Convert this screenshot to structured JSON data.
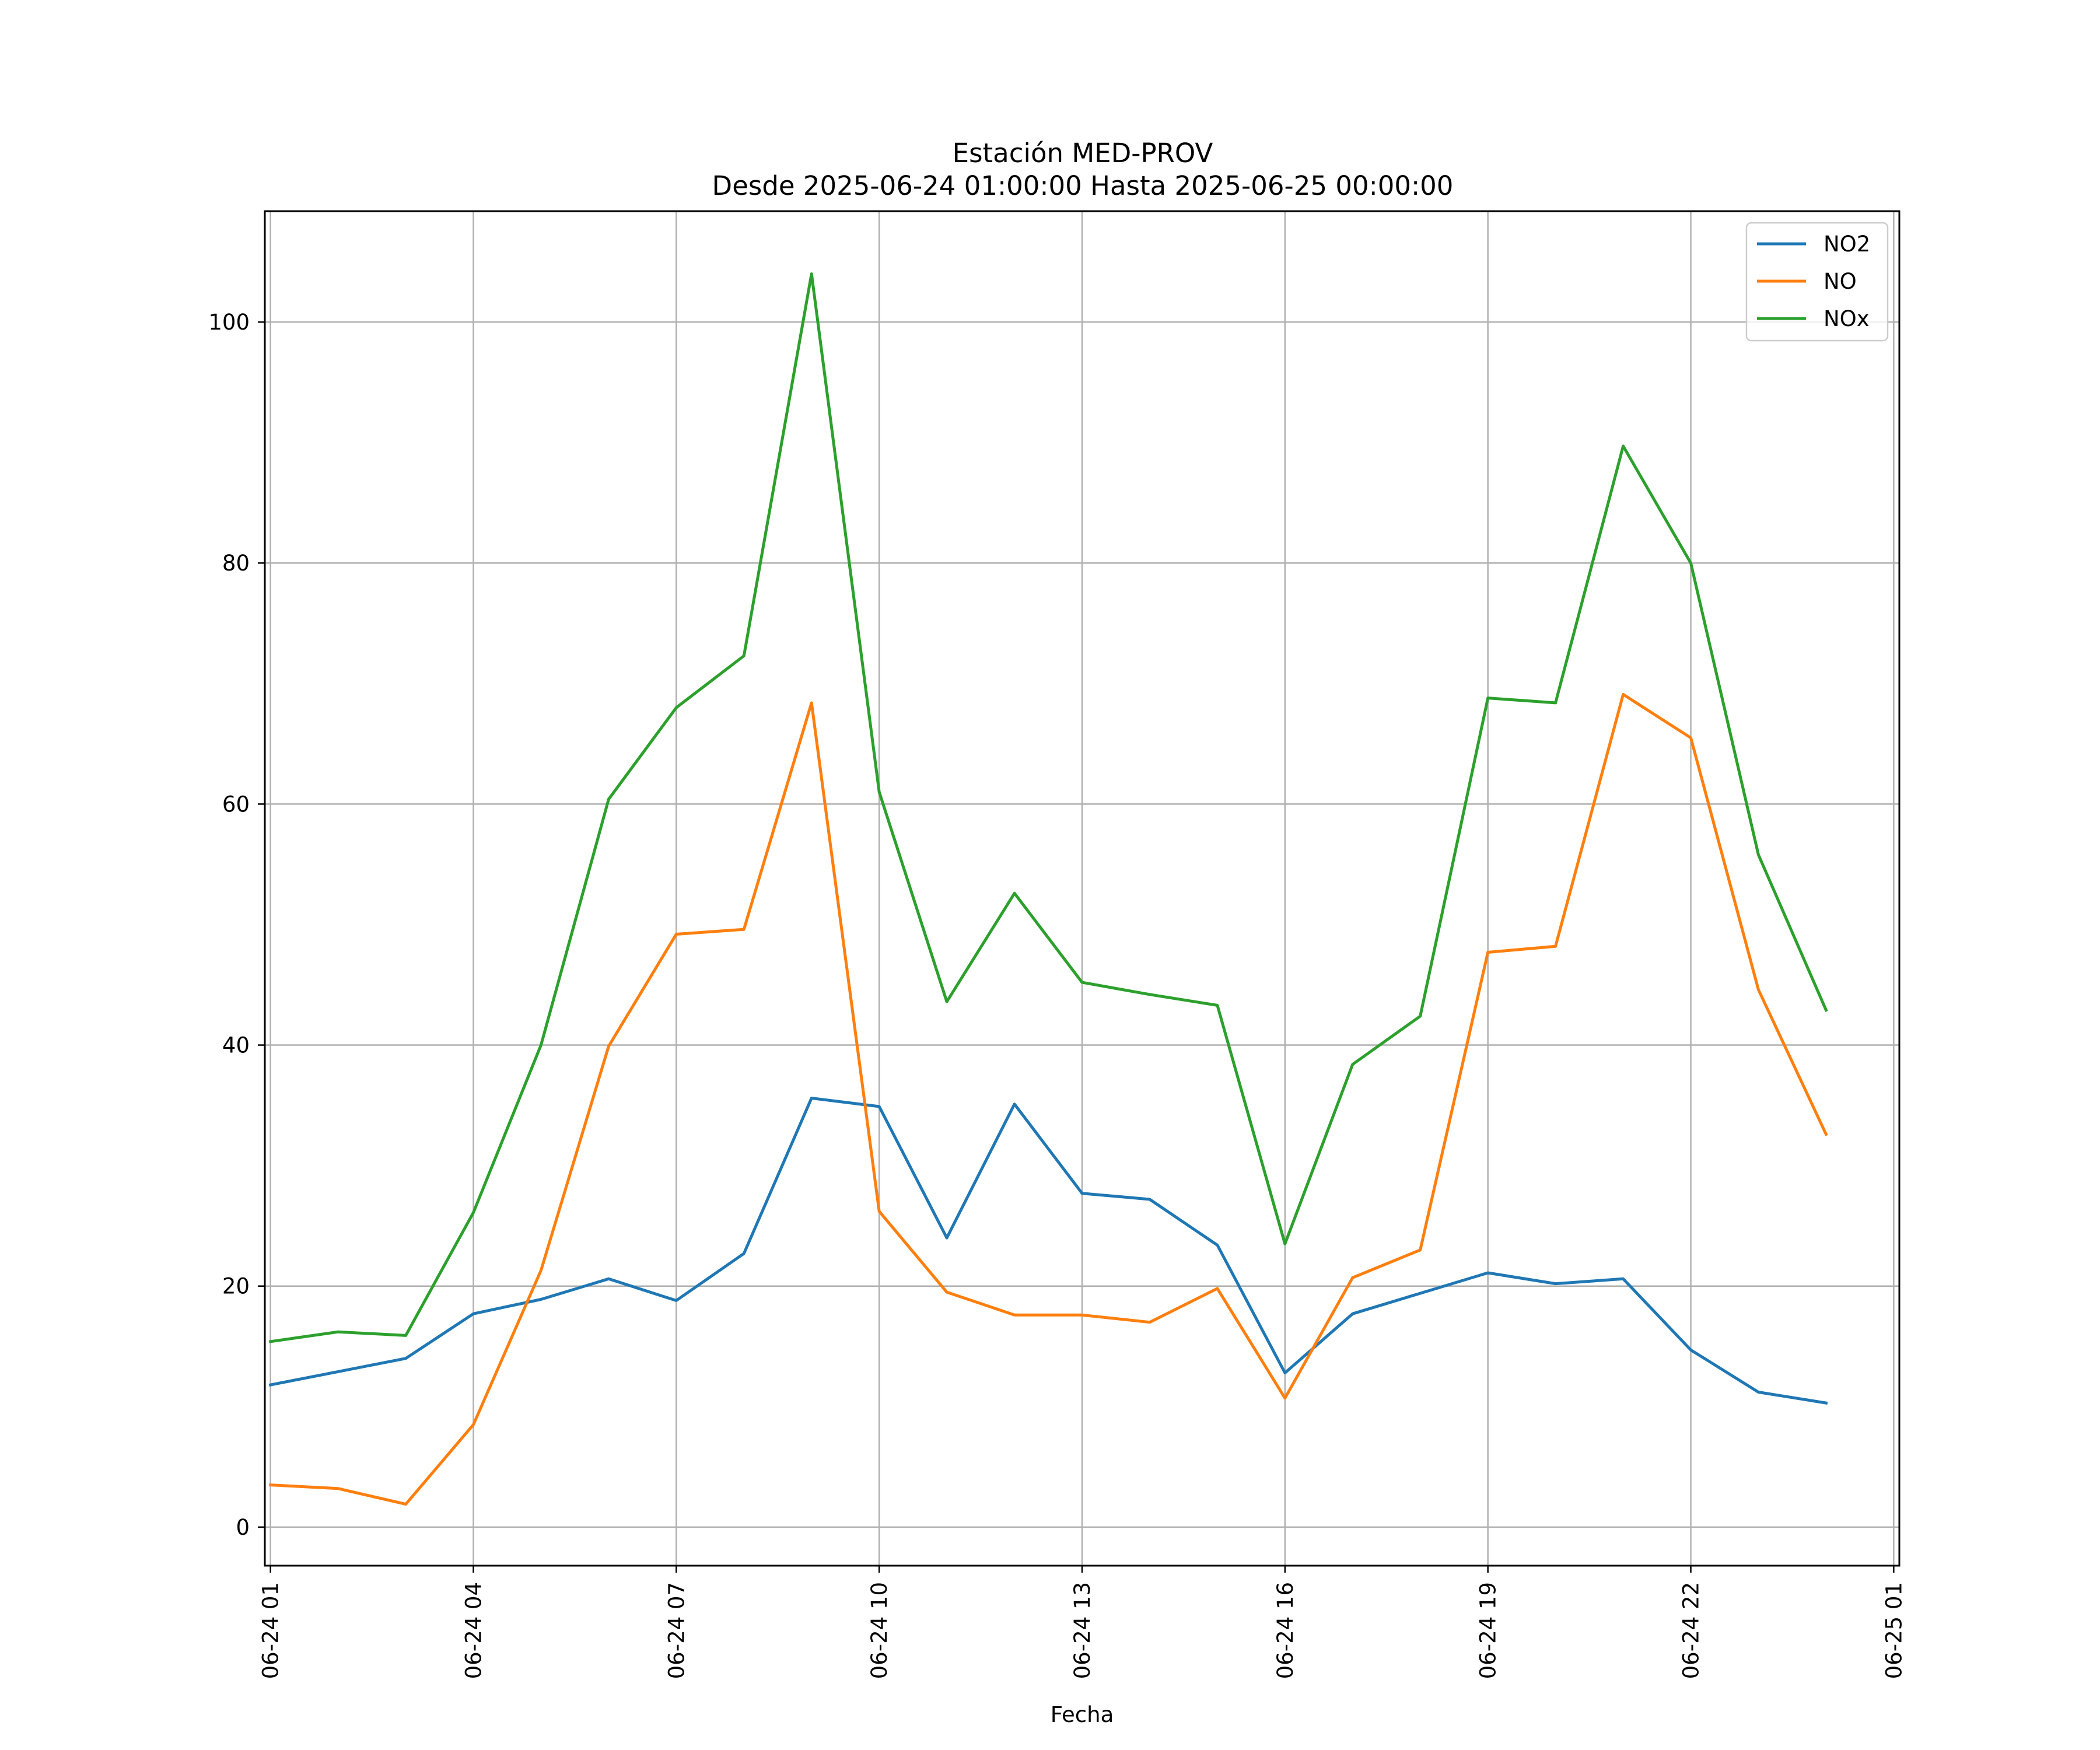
{
  "chart_data": {
    "type": "line",
    "title": "Estación MED-PROV",
    "subtitle": "Desde 2025-06-24 01:00:00 Hasta 2025-06-25 00:00:00",
    "xlabel": "Fecha",
    "ylabel": "",
    "x": [
      "2025-06-24 01:00",
      "2025-06-24 02:00",
      "2025-06-24 03:00",
      "2025-06-24 04:00",
      "2025-06-24 05:00",
      "2025-06-24 06:00",
      "2025-06-24 07:00",
      "2025-06-24 08:00",
      "2025-06-24 09:00",
      "2025-06-24 10:00",
      "2025-06-24 11:00",
      "2025-06-24 12:00",
      "2025-06-24 13:00",
      "2025-06-24 14:00",
      "2025-06-24 15:00",
      "2025-06-24 16:00",
      "2025-06-24 17:00",
      "2025-06-24 18:00",
      "2025-06-24 19:00",
      "2025-06-24 20:00",
      "2025-06-24 21:00",
      "2025-06-24 22:00",
      "2025-06-24 23:00",
      "2025-06-25 00:00"
    ],
    "series": [
      {
        "name": "NO2",
        "color": "#1f77b4",
        "values": [
          11.8,
          12.9,
          14.0,
          17.7,
          18.9,
          20.6,
          18.8,
          22.7,
          35.6,
          34.9,
          24.0,
          35.1,
          27.7,
          27.2,
          23.4,
          12.8,
          17.7,
          19.4,
          21.1,
          20.2,
          20.6,
          14.7,
          11.2,
          10.3
        ]
      },
      {
        "name": "NO",
        "color": "#ff7f0e",
        "values": [
          3.5,
          3.2,
          1.9,
          8.5,
          21.3,
          39.9,
          49.2,
          49.6,
          68.4,
          26.2,
          19.5,
          17.6,
          17.6,
          17.0,
          19.8,
          10.7,
          20.7,
          23.0,
          47.7,
          48.2,
          69.1,
          65.5,
          44.6,
          32.6
        ]
      },
      {
        "name": "NOx",
        "color": "#2ca02c",
        "values": [
          15.4,
          16.2,
          15.9,
          26.1,
          40.0,
          60.4,
          68.0,
          72.3,
          104.0,
          61.0,
          43.6,
          52.6,
          45.2,
          44.2,
          43.3,
          23.5,
          38.4,
          42.4,
          68.8,
          68.4,
          89.7,
          80.0,
          55.8,
          42.9
        ]
      }
    ],
    "xticks": [
      "06-24 01",
      "06-24 04",
      "06-24 07",
      "06-24 10",
      "06-24 13",
      "06-24 16",
      "06-24 19",
      "06-24 22",
      "06-25 01"
    ],
    "yticks": [
      "0",
      "20",
      "40",
      "60",
      "80",
      "100"
    ],
    "xlim": [
      "2025-06-24 00:55",
      "2025-06-25 01:05"
    ],
    "ylim": [
      -3.2,
      109.2
    ],
    "grid": true,
    "legend_position": "top-right"
  }
}
